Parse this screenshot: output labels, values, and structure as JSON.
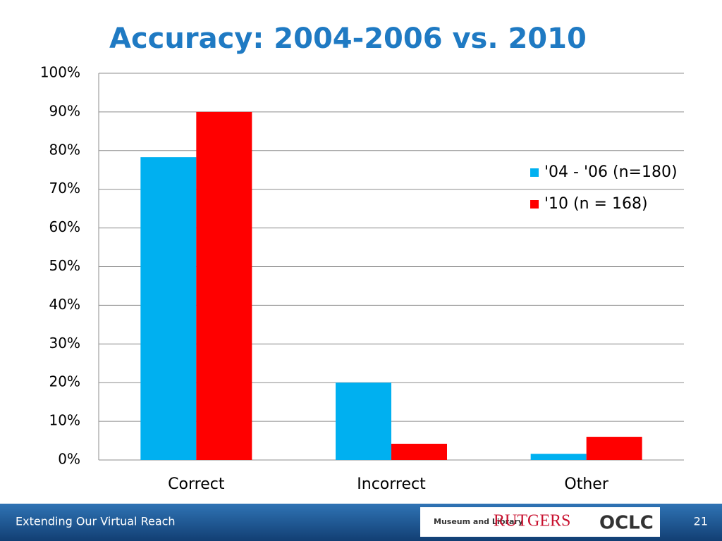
{
  "chart_data": {
    "type": "bar",
    "title": "Accuracy: 2004-2006 vs. 2010",
    "categories": [
      "Correct",
      "Incorrect",
      "Other"
    ],
    "series": [
      {
        "name": "'04 - '06 (n=180)",
        "color": "#00b0f0",
        "values": [
          78.3,
          20,
          1.6
        ]
      },
      {
        "name": "'10 (n = 168)",
        "color": "#ff0000",
        "values": [
          90,
          4.2,
          6
        ]
      }
    ],
    "ylim": [
      0,
      100
    ],
    "yticks": [
      {
        "value": 0,
        "label": "0%"
      },
      {
        "value": 10,
        "label": "10%"
      },
      {
        "value": 20,
        "label": "20%"
      },
      {
        "value": 30,
        "label": "30%"
      },
      {
        "value": 40,
        "label": "40%"
      },
      {
        "value": 50,
        "label": "50%"
      },
      {
        "value": 60,
        "label": "60%"
      },
      {
        "value": 70,
        "label": "70%"
      },
      {
        "value": 80,
        "label": "80%"
      },
      {
        "value": 90,
        "label": "90%"
      },
      {
        "value": 100,
        "label": "100%"
      }
    ],
    "grid": true,
    "legend": "right"
  },
  "footer": {
    "text": "Extending Our Virtual Reach",
    "page": "21",
    "logos": [
      "Museum and Library",
      "RUTGERS",
      "OCLC"
    ]
  }
}
